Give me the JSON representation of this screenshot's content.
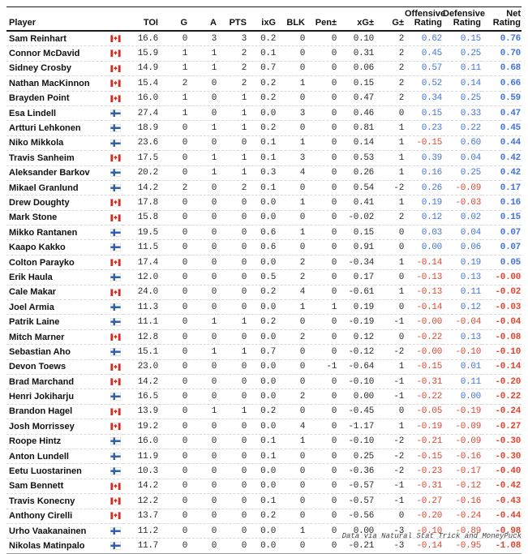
{
  "page": {
    "footer_credit": "Data via Natural Stat Trick and MoneyPuck"
  },
  "colors": {
    "positive_blue": "#4273dd",
    "negative_red": "#e0452e",
    "flag_red": "#d52b1e",
    "flag_blue": "#2f5fae",
    "header_line": "#1a1a1a",
    "row_divider": "#d9d9d9"
  },
  "chart_data": {
    "type": "table",
    "title": "",
    "columns": [
      "Player",
      "TOI",
      "G",
      "A",
      "PTS",
      "ixG",
      "BLK",
      "Pen±",
      "xG±",
      "G±",
      "Offensive\nRating",
      "Defensive\nRating",
      "Net\nRating"
    ],
    "rows": [
      {
        "player": "Sam Reinhart",
        "country": "CA",
        "toi": "16.6",
        "g": "0",
        "a": "3",
        "pts": "3",
        "ixg": "0.2",
        "blk": "0",
        "pen": "0",
        "xg": "0.10",
        "gpm": "2",
        "off": "0.62",
        "def": "0.15",
        "net": "0.76"
      },
      {
        "player": "Connor McDavid",
        "country": "CA",
        "toi": "15.9",
        "g": "1",
        "a": "1",
        "pts": "2",
        "ixg": "0.1",
        "blk": "0",
        "pen": "0",
        "xg": "0.31",
        "gpm": "2",
        "off": "0.45",
        "def": "0.25",
        "net": "0.70"
      },
      {
        "player": "Sidney Crosby",
        "country": "CA",
        "toi": "14.9",
        "g": "1",
        "a": "1",
        "pts": "2",
        "ixg": "0.7",
        "blk": "0",
        "pen": "0",
        "xg": "0.06",
        "gpm": "2",
        "off": "0.57",
        "def": "0.11",
        "net": "0.68"
      },
      {
        "player": "Nathan MacKinnon",
        "country": "CA",
        "toi": "15.4",
        "g": "2",
        "a": "0",
        "pts": "2",
        "ixg": "0.2",
        "blk": "1",
        "pen": "0",
        "xg": "0.15",
        "gpm": "2",
        "off": "0.52",
        "def": "0.14",
        "net": "0.66"
      },
      {
        "player": "Brayden Point",
        "country": "CA",
        "toi": "16.0",
        "g": "1",
        "a": "0",
        "pts": "1",
        "ixg": "0.2",
        "blk": "0",
        "pen": "0",
        "xg": "0.47",
        "gpm": "2",
        "off": "0.34",
        "def": "0.25",
        "net": "0.59"
      },
      {
        "player": "Esa Lindell",
        "country": "FI",
        "toi": "27.4",
        "g": "1",
        "a": "0",
        "pts": "1",
        "ixg": "0.0",
        "blk": "3",
        "pen": "0",
        "xg": "0.46",
        "gpm": "0",
        "off": "0.15",
        "def": "0.33",
        "net": "0.47"
      },
      {
        "player": "Artturi Lehkonen",
        "country": "FI",
        "toi": "18.9",
        "g": "0",
        "a": "1",
        "pts": "1",
        "ixg": "0.2",
        "blk": "0",
        "pen": "0",
        "xg": "0.81",
        "gpm": "1",
        "off": "0.23",
        "def": "0.22",
        "net": "0.45"
      },
      {
        "player": "Niko Mikkola",
        "country": "FI",
        "toi": "23.6",
        "g": "0",
        "a": "0",
        "pts": "0",
        "ixg": "0.1",
        "blk": "1",
        "pen": "0",
        "xg": "0.14",
        "gpm": "1",
        "off": "-0.15",
        "def": "0.60",
        "net": "0.44"
      },
      {
        "player": "Travis Sanheim",
        "country": "CA",
        "toi": "17.5",
        "g": "0",
        "a": "1",
        "pts": "1",
        "ixg": "0.1",
        "blk": "3",
        "pen": "0",
        "xg": "0.53",
        "gpm": "1",
        "off": "0.39",
        "def": "0.04",
        "net": "0.42"
      },
      {
        "player": "Aleksander Barkov",
        "country": "FI",
        "toi": "20.2",
        "g": "0",
        "a": "1",
        "pts": "1",
        "ixg": "0.3",
        "blk": "4",
        "pen": "0",
        "xg": "0.26",
        "gpm": "1",
        "off": "0.16",
        "def": "0.25",
        "net": "0.42"
      },
      {
        "player": "Mikael Granlund",
        "country": "FI",
        "toi": "14.2",
        "g": "2",
        "a": "0",
        "pts": "2",
        "ixg": "0.1",
        "blk": "0",
        "pen": "0",
        "xg": "0.54",
        "gpm": "-2",
        "off": "0.26",
        "def": "-0.09",
        "net": "0.17"
      },
      {
        "player": "Drew Doughty",
        "country": "CA",
        "toi": "17.8",
        "g": "0",
        "a": "0",
        "pts": "0",
        "ixg": "0.0",
        "blk": "1",
        "pen": "0",
        "xg": "0.41",
        "gpm": "1",
        "off": "0.19",
        "def": "-0.03",
        "net": "0.16"
      },
      {
        "player": "Mark Stone",
        "country": "CA",
        "toi": "15.8",
        "g": "0",
        "a": "0",
        "pts": "0",
        "ixg": "0.0",
        "blk": "0",
        "pen": "0",
        "xg": "-0.02",
        "gpm": "2",
        "off": "0.12",
        "def": "0.02",
        "net": "0.15"
      },
      {
        "player": "Mikko Rantanen",
        "country": "FI",
        "toi": "19.5",
        "g": "0",
        "a": "0",
        "pts": "0",
        "ixg": "0.6",
        "blk": "1",
        "pen": "0",
        "xg": "0.15",
        "gpm": "0",
        "off": "0.03",
        "def": "0.04",
        "net": "0.07"
      },
      {
        "player": "Kaapo Kakko",
        "country": "FI",
        "toi": "11.5",
        "g": "0",
        "a": "0",
        "pts": "0",
        "ixg": "0.6",
        "blk": "0",
        "pen": "0",
        "xg": "0.91",
        "gpm": "0",
        "off": "0.00",
        "def": "0.06",
        "net": "0.07"
      },
      {
        "player": "Colton Parayko",
        "country": "CA",
        "toi": "17.4",
        "g": "0",
        "a": "0",
        "pts": "0",
        "ixg": "0.0",
        "blk": "2",
        "pen": "0",
        "xg": "-0.34",
        "gpm": "1",
        "off": "-0.14",
        "def": "0.19",
        "net": "0.05"
      },
      {
        "player": "Erik Haula",
        "country": "FI",
        "toi": "12.0",
        "g": "0",
        "a": "0",
        "pts": "0",
        "ixg": "0.5",
        "blk": "2",
        "pen": "0",
        "xg": "0.17",
        "gpm": "0",
        "off": "-0.13",
        "def": "0.13",
        "net": "-0.00"
      },
      {
        "player": "Cale Makar",
        "country": "CA",
        "toi": "24.0",
        "g": "0",
        "a": "0",
        "pts": "0",
        "ixg": "0.2",
        "blk": "4",
        "pen": "0",
        "xg": "-0.61",
        "gpm": "1",
        "off": "-0.13",
        "def": "0.11",
        "net": "-0.02"
      },
      {
        "player": "Joel Armia",
        "country": "FI",
        "toi": "11.3",
        "g": "0",
        "a": "0",
        "pts": "0",
        "ixg": "0.0",
        "blk": "1",
        "pen": "1",
        "xg": "0.19",
        "gpm": "0",
        "off": "-0.14",
        "def": "0.12",
        "net": "-0.03"
      },
      {
        "player": "Patrik Laine",
        "country": "FI",
        "toi": "11.1",
        "g": "0",
        "a": "1",
        "pts": "1",
        "ixg": "0.2",
        "blk": "0",
        "pen": "0",
        "xg": "-0.19",
        "gpm": "-1",
        "off": "-0.00",
        "def": "-0.04",
        "net": "-0.04"
      },
      {
        "player": "Mitch Marner",
        "country": "CA",
        "toi": "12.8",
        "g": "0",
        "a": "0",
        "pts": "0",
        "ixg": "0.0",
        "blk": "2",
        "pen": "0",
        "xg": "0.12",
        "gpm": "0",
        "off": "-0.22",
        "def": "0.13",
        "net": "-0.08"
      },
      {
        "player": "Sebastian Aho",
        "country": "FI",
        "toi": "15.1",
        "g": "0",
        "a": "1",
        "pts": "1",
        "ixg": "0.7",
        "blk": "0",
        "pen": "0",
        "xg": "-0.12",
        "gpm": "-2",
        "off": "-0.00",
        "def": "-0.10",
        "net": "-0.10"
      },
      {
        "player": "Devon Toews",
        "country": "CA",
        "toi": "23.0",
        "g": "0",
        "a": "0",
        "pts": "0",
        "ixg": "0.0",
        "blk": "0",
        "pen": "-1",
        "xg": "-0.64",
        "gpm": "1",
        "off": "-0.15",
        "def": "0.01",
        "net": "-0.14"
      },
      {
        "player": "Brad Marchand",
        "country": "CA",
        "toi": "14.2",
        "g": "0",
        "a": "0",
        "pts": "0",
        "ixg": "0.0",
        "blk": "0",
        "pen": "0",
        "xg": "-0.10",
        "gpm": "-1",
        "off": "-0.31",
        "def": "0.11",
        "net": "-0.20"
      },
      {
        "player": "Henri Jokiharju",
        "country": "FI",
        "toi": "16.5",
        "g": "0",
        "a": "0",
        "pts": "0",
        "ixg": "0.0",
        "blk": "2",
        "pen": "0",
        "xg": "0.00",
        "gpm": "-1",
        "off": "-0.22",
        "def": "0.00",
        "net": "-0.22"
      },
      {
        "player": "Brandon Hagel",
        "country": "CA",
        "toi": "13.9",
        "g": "0",
        "a": "1",
        "pts": "1",
        "ixg": "0.2",
        "blk": "0",
        "pen": "0",
        "xg": "-0.45",
        "gpm": "0",
        "off": "-0.05",
        "def": "-0.19",
        "net": "-0.24"
      },
      {
        "player": "Josh Morrissey",
        "country": "CA",
        "toi": "19.2",
        "g": "0",
        "a": "0",
        "pts": "0",
        "ixg": "0.0",
        "blk": "4",
        "pen": "0",
        "xg": "-1.17",
        "gpm": "1",
        "off": "-0.19",
        "def": "-0.09",
        "net": "-0.27"
      },
      {
        "player": "Roope Hintz",
        "country": "FI",
        "toi": "16.0",
        "g": "0",
        "a": "0",
        "pts": "0",
        "ixg": "0.1",
        "blk": "1",
        "pen": "0",
        "xg": "-0.10",
        "gpm": "-2",
        "off": "-0.21",
        "def": "-0.09",
        "net": "-0.30"
      },
      {
        "player": "Anton Lundell",
        "country": "FI",
        "toi": "11.9",
        "g": "0",
        "a": "0",
        "pts": "0",
        "ixg": "0.1",
        "blk": "0",
        "pen": "0",
        "xg": "0.25",
        "gpm": "-2",
        "off": "-0.15",
        "def": "-0.16",
        "net": "-0.30"
      },
      {
        "player": "Eetu Luostarinen",
        "country": "FI",
        "toi": "10.3",
        "g": "0",
        "a": "0",
        "pts": "0",
        "ixg": "0.0",
        "blk": "0",
        "pen": "0",
        "xg": "-0.36",
        "gpm": "-2",
        "off": "-0.23",
        "def": "-0.17",
        "net": "-0.40"
      },
      {
        "player": "Sam Bennett",
        "country": "CA",
        "toi": "14.2",
        "g": "0",
        "a": "0",
        "pts": "0",
        "ixg": "0.0",
        "blk": "0",
        "pen": "0",
        "xg": "-0.57",
        "gpm": "-1",
        "off": "-0.31",
        "def": "-0.12",
        "net": "-0.42"
      },
      {
        "player": "Travis Konecny",
        "country": "CA",
        "toi": "12.2",
        "g": "0",
        "a": "0",
        "pts": "0",
        "ixg": "0.1",
        "blk": "0",
        "pen": "0",
        "xg": "-0.57",
        "gpm": "-1",
        "off": "-0.27",
        "def": "-0.16",
        "net": "-0.43"
      },
      {
        "player": "Anthony Cirelli",
        "country": "CA",
        "toi": "13.7",
        "g": "0",
        "a": "0",
        "pts": "0",
        "ixg": "0.2",
        "blk": "0",
        "pen": "0",
        "xg": "-0.56",
        "gpm": "0",
        "off": "-0.20",
        "def": "-0.24",
        "net": "-0.44"
      },
      {
        "player": "Urho Vaakanainen",
        "country": "FI",
        "toi": "11.2",
        "g": "0",
        "a": "0",
        "pts": "0",
        "ixg": "0.0",
        "blk": "1",
        "pen": "0",
        "xg": "0.00",
        "gpm": "-3",
        "off": "-0.10",
        "def": "-0.89",
        "net": "-0.98"
      },
      {
        "player": "Nikolas Matinpalo",
        "country": "FI",
        "toi": "11.7",
        "g": "0",
        "a": "0",
        "pts": "0",
        "ixg": "0.0",
        "blk": "0",
        "pen": "0",
        "xg": "-0.21",
        "gpm": "-3",
        "off": "-0.14",
        "def": "-0.95",
        "net": "-1.08"
      }
    ]
  }
}
